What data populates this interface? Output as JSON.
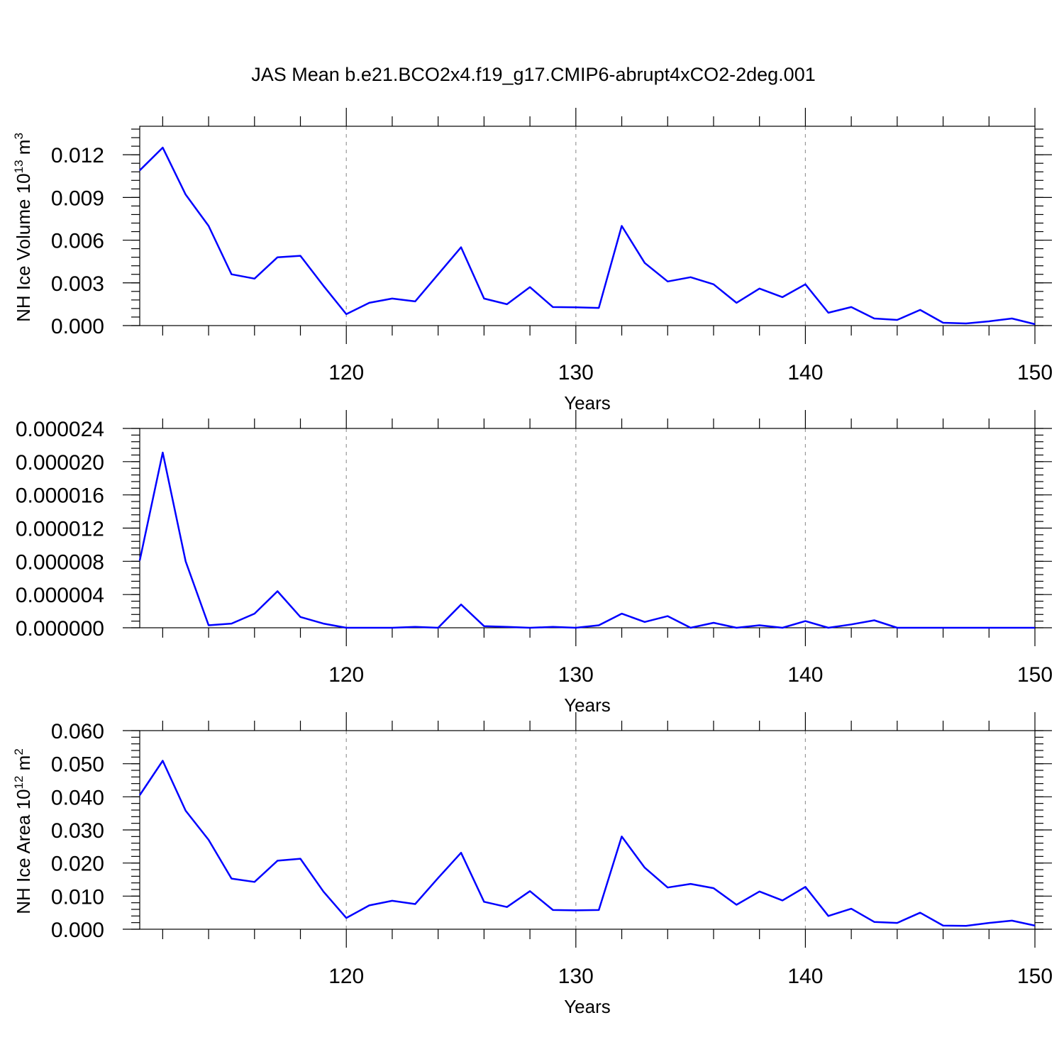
{
  "figure_title": "JAS Mean b.e21.BCO2x4.f19_g17.CMIP6-abrupt4xCO2-2deg.001",
  "colors": {
    "line": "#0000ff",
    "grid": "#999999",
    "axes": "#000000"
  },
  "chart_data": [
    {
      "type": "line",
      "title": "JAS Mean b.e21.BCO2x4.f19_g17.CMIP6-abrupt4xCO2-2deg.001",
      "xlabel": "Years",
      "ylabel": "NH Ice Volume 10",
      "ylabel_sup": "13",
      "ylabel_unit": "m",
      "ylabel_unit_sup": "3",
      "xlim": [
        111,
        150
      ],
      "ylim": [
        0,
        0.014
      ],
      "xticks": [
        "120",
        "130",
        "140",
        "150"
      ],
      "xtick_values": [
        120,
        130,
        140,
        150
      ],
      "yticks": [
        "0.000",
        "0.003",
        "0.006",
        "0.009",
        "0.012"
      ],
      "ytick_values": [
        0,
        0.003,
        0.006,
        0.009,
        0.012
      ],
      "ymajor_step": 0.003,
      "yminor_step": 0.0006,
      "grid": "dashed vertical at major x ticks",
      "series": [
        {
          "x": [
            111,
            112,
            113,
            114,
            115,
            116,
            117,
            118,
            119,
            120,
            121,
            122,
            123,
            124,
            125,
            126,
            127,
            128,
            129,
            130,
            131,
            132,
            133,
            134,
            135,
            136,
            137,
            138,
            139,
            140,
            141,
            142,
            143,
            144,
            145,
            146,
            147,
            148,
            149,
            150
          ],
          "values": [
            0.0109,
            0.0125,
            0.0092,
            0.007,
            0.0036,
            0.0033,
            0.0048,
            0.0049,
            0.0028,
            0.0008,
            0.0016,
            0.0019,
            0.0017,
            0.0036,
            0.0055,
            0.0019,
            0.0015,
            0.0027,
            0.0013,
            0.00128,
            0.00124,
            0.007,
            0.0044,
            0.0031,
            0.0034,
            0.0029,
            0.0016,
            0.0026,
            0.002,
            0.0029,
            0.0009,
            0.0013,
            0.0005,
            0.0004,
            0.0011,
            0.0002,
            0.00015,
            0.0003,
            0.0005,
            0.0001
          ]
        }
      ]
    },
    {
      "type": "line",
      "xlabel": "Years",
      "ylabel": "",
      "xlim": [
        111,
        150
      ],
      "ylim": [
        0,
        2.4e-05
      ],
      "xticks": [
        "120",
        "130",
        "140",
        "150"
      ],
      "xtick_values": [
        120,
        130,
        140,
        150
      ],
      "yticks": [
        "0.000000",
        "0.000004",
        "0.000008",
        "0.000012",
        "0.000016",
        "0.000020",
        "0.000024"
      ],
      "ytick_values": [
        0,
        4e-06,
        8e-06,
        1.2e-05,
        1.6e-05,
        2e-05,
        2.4e-05
      ],
      "ymajor_step": 4e-06,
      "yminor_step": 8e-07,
      "grid": "dashed vertical at major x ticks",
      "series": [
        {
          "x": [
            111,
            112,
            113,
            114,
            115,
            116,
            117,
            118,
            119,
            120,
            121,
            122,
            123,
            124,
            125,
            126,
            127,
            128,
            129,
            130,
            131,
            132,
            133,
            134,
            135,
            136,
            137,
            138,
            139,
            140,
            141,
            142,
            143,
            144,
            145,
            146,
            147,
            148,
            149,
            150
          ],
          "values": [
            8.1e-06,
            2.11e-05,
            8e-06,
            3e-07,
            5e-07,
            1.7e-06,
            4.4e-06,
            1.3e-06,
            5e-07,
            0.0,
            0.0,
            0.0,
            1e-07,
            0.0,
            2.8e-06,
            2e-07,
            1e-07,
            0.0,
            1e-07,
            0.0,
            3e-07,
            1.7e-06,
            7e-07,
            1.4e-06,
            0.0,
            6e-07,
            0.0,
            3e-07,
            0.0,
            8e-07,
            0.0,
            4e-07,
            9e-07,
            0.0,
            0.0,
            0.0,
            0.0,
            0.0,
            0.0,
            0.0
          ]
        }
      ]
    },
    {
      "type": "line",
      "xlabel": "Years",
      "ylabel": "NH Ice Area 10",
      "ylabel_sup": "12",
      "ylabel_unit": "m",
      "ylabel_unit_sup": "2",
      "xlim": [
        111,
        150
      ],
      "ylim": [
        0,
        0.06
      ],
      "xticks": [
        "120",
        "130",
        "140",
        "150"
      ],
      "xtick_values": [
        120,
        130,
        140,
        150
      ],
      "yticks": [
        "0.000",
        "0.010",
        "0.020",
        "0.030",
        "0.040",
        "0.050",
        "0.060"
      ],
      "ytick_values": [
        0,
        0.01,
        0.02,
        0.03,
        0.04,
        0.05,
        0.06
      ],
      "ymajor_step": 0.01,
      "yminor_step": 0.002,
      "grid": "dashed vertical at major x ticks",
      "series": [
        {
          "x": [
            111,
            112,
            113,
            114,
            115,
            116,
            117,
            118,
            119,
            120,
            121,
            122,
            123,
            124,
            125,
            126,
            127,
            128,
            129,
            130,
            131,
            132,
            133,
            134,
            135,
            136,
            137,
            138,
            139,
            140,
            141,
            142,
            143,
            144,
            145,
            146,
            147,
            148,
            149,
            150
          ],
          "values": [
            0.0405,
            0.0509,
            0.0358,
            0.027,
            0.0153,
            0.0143,
            0.0207,
            0.0213,
            0.0114,
            0.0034,
            0.0072,
            0.0086,
            0.0076,
            0.0155,
            0.0231,
            0.0083,
            0.0067,
            0.0115,
            0.0058,
            0.0057,
            0.0058,
            0.028,
            0.0186,
            0.0126,
            0.0137,
            0.0124,
            0.0074,
            0.0114,
            0.0087,
            0.0128,
            0.004,
            0.0062,
            0.0022,
            0.0019,
            0.005,
            0.0011,
            0.001,
            0.0019,
            0.0026,
            0.0011
          ]
        }
      ]
    }
  ]
}
